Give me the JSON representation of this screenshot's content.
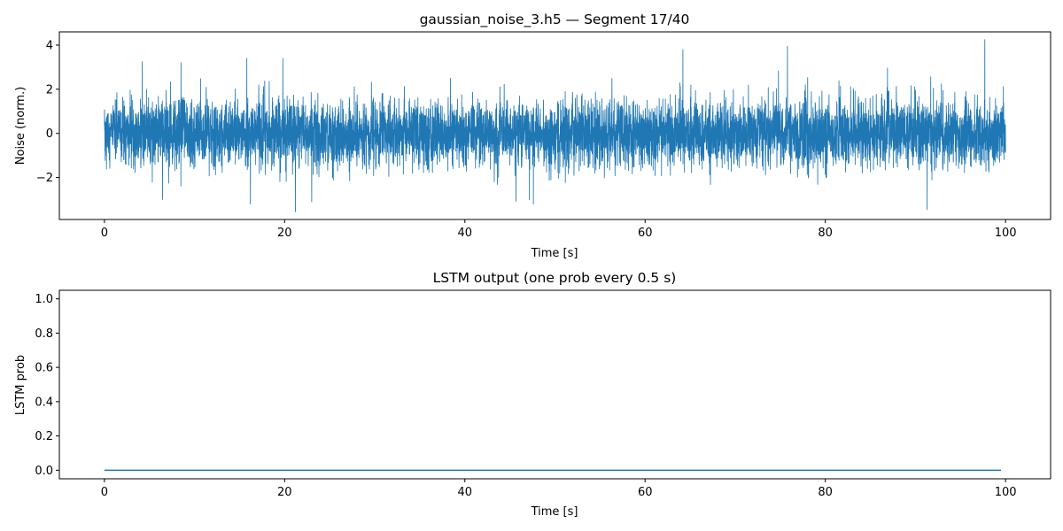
{
  "colors": {
    "series": "#1f77b4",
    "axes": "#000000",
    "background": "#ffffff"
  },
  "chart_data": [
    {
      "type": "line",
      "title": "gaussian_noise_3.h5 — Segment 17/40",
      "xlabel": "Time [s]",
      "ylabel": "Noise (norm.)",
      "xlim": [
        -5,
        105
      ],
      "ylim": [
        -3.9,
        4.6
      ],
      "xticks": [
        0,
        20,
        40,
        60,
        80,
        100
      ],
      "yticks": [
        -2,
        0,
        2,
        4
      ],
      "xtick_labels": [
        "0",
        "20",
        "40",
        "60",
        "80",
        "100"
      ],
      "ytick_labels": [
        "−2",
        "0",
        "2",
        "4"
      ],
      "grid": false,
      "series": [
        {
          "x_range": [
            0,
            100
          ],
          "distribution": "gaussian",
          "mean": 0,
          "std": 0.75,
          "approx_min": -3.55,
          "approx_max": 4.25,
          "notable_peaks": [
            {
              "x": 97.7,
              "y": 4.25
            },
            {
              "x": 75.8,
              "y": 3.95
            },
            {
              "x": 64.2,
              "y": 3.8
            },
            {
              "x": 19.8,
              "y": 3.4
            },
            {
              "x": 15.8,
              "y": 3.4
            },
            {
              "x": 8.5,
              "y": 3.2
            },
            {
              "x": 4.2,
              "y": 3.25
            }
          ],
          "notable_troughs": [
            {
              "x": 21.2,
              "y": -3.55
            },
            {
              "x": 91.3,
              "y": -3.45
            },
            {
              "x": 16.2,
              "y": -3.2
            },
            {
              "x": 23.0,
              "y": -3.1
            },
            {
              "x": 47.6,
              "y": -3.2
            }
          ]
        }
      ]
    },
    {
      "type": "line",
      "title": "LSTM output (one prob every 0.5 s)",
      "xlabel": "Time [s]",
      "ylabel": "LSTM prob",
      "xlim": [
        -5,
        105
      ],
      "ylim": [
        -0.05,
        1.05
      ],
      "xticks": [
        0,
        20,
        40,
        60,
        80,
        100
      ],
      "yticks": [
        0.0,
        0.2,
        0.4,
        0.6,
        0.8,
        1.0
      ],
      "xtick_labels": [
        "0",
        "20",
        "40",
        "60",
        "80",
        "100"
      ],
      "ytick_labels": [
        "0.0",
        "0.2",
        "0.4",
        "0.6",
        "0.8",
        "1.0"
      ],
      "grid": false,
      "series": [
        {
          "x": [
            0,
            99.5
          ],
          "y": [
            0.0,
            0.0
          ]
        }
      ]
    }
  ]
}
